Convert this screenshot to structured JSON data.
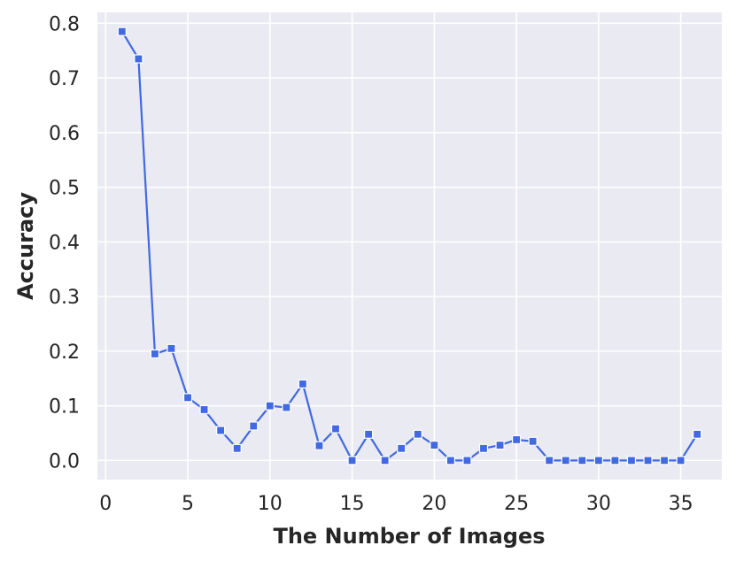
{
  "chart_data": {
    "type": "line",
    "title": "",
    "xlabel": "The Number of Images",
    "ylabel": "Accuracy",
    "xlim": [
      -0.5,
      37.5
    ],
    "ylim": [
      -0.035,
      0.82
    ],
    "x_ticks": [
      0,
      5,
      10,
      15,
      20,
      25,
      30,
      35
    ],
    "y_ticks": [
      0.0,
      0.1,
      0.2,
      0.3,
      0.4,
      0.5,
      0.6,
      0.7,
      0.8
    ],
    "x_tick_labels": [
      "0",
      "5",
      "10",
      "15",
      "20",
      "25",
      "30",
      "35"
    ],
    "y_tick_labels": [
      "0.0",
      "0.1",
      "0.2",
      "0.3",
      "0.4",
      "0.5",
      "0.6",
      "0.7",
      "0.8"
    ],
    "grid": true,
    "background": "#eaeaf2",
    "series": [
      {
        "color": "#4169e1",
        "marker": "square",
        "x": [
          1,
          2,
          3,
          4,
          5,
          6,
          7,
          8,
          9,
          10,
          11,
          12,
          13,
          14,
          15,
          16,
          17,
          18,
          19,
          20,
          21,
          22,
          23,
          24,
          25,
          26,
          27,
          28,
          29,
          30,
          31,
          32,
          33,
          34,
          35,
          36
        ],
        "y": [
          0.785,
          0.735,
          0.195,
          0.205,
          0.115,
          0.093,
          0.055,
          0.022,
          0.063,
          0.1,
          0.097,
          0.14,
          0.027,
          0.058,
          0.0,
          0.048,
          0.0,
          0.022,
          0.048,
          0.028,
          0.0,
          0.0,
          0.022,
          0.028,
          0.038,
          0.035,
          0.0,
          0.0,
          0.0,
          0.0,
          0.0,
          0.0,
          0.0,
          0.0,
          0.0,
          0.048
        ]
      }
    ]
  }
}
